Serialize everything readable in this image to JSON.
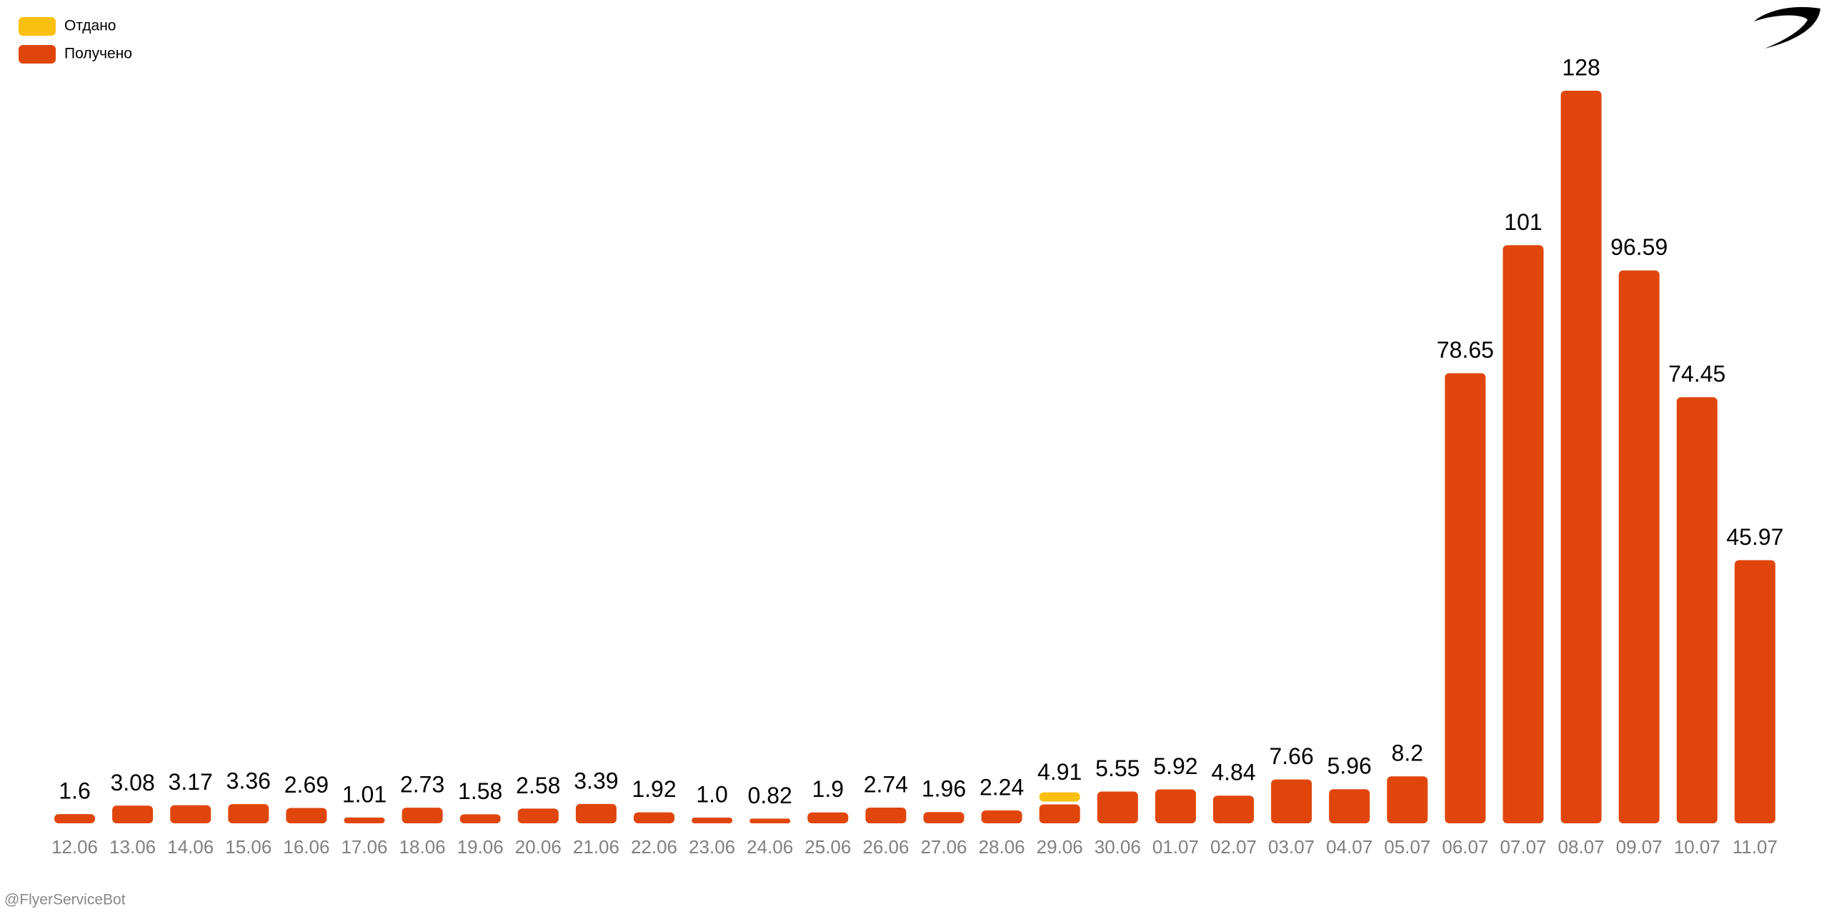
{
  "chart_data": {
    "type": "stacked_bar",
    "categories": [
      "12.06",
      "13.06",
      "14.06",
      "15.06",
      "16.06",
      "17.06",
      "18.06",
      "19.06",
      "20.06",
      "21.06",
      "22.06",
      "23.06",
      "24.06",
      "25.06",
      "26.06",
      "27.06",
      "28.06",
      "29.06",
      "30.06",
      "01.07",
      "02.07",
      "03.07",
      "04.07",
      "05.07",
      "06.07",
      "07.07",
      "08.07",
      "09.07",
      "10.07",
      "11.07"
    ],
    "series": [
      {
        "name": "Получено",
        "color": "#e0460c",
        "values": [
          1.6,
          3.08,
          3.17,
          3.36,
          2.69,
          1.01,
          2.73,
          1.58,
          2.58,
          3.39,
          1.92,
          1.0,
          0.82,
          1.9,
          2.74,
          1.96,
          2.24,
          3.31,
          5.55,
          5.92,
          4.84,
          7.66,
          5.96,
          8.2,
          78.65,
          101,
          128,
          96.59,
          74.45,
          45.97
        ]
      },
      {
        "name": "Отдано",
        "color": "#fbbf0f",
        "values": [
          null,
          null,
          null,
          null,
          null,
          null,
          null,
          null,
          null,
          null,
          null,
          null,
          null,
          null,
          null,
          null,
          null,
          1.6,
          null,
          null,
          null,
          null,
          null,
          null,
          null,
          null,
          null,
          null,
          null,
          null
        ]
      }
    ],
    "totals": [
      1.6,
      3.08,
      3.17,
      3.36,
      2.69,
      1.01,
      2.73,
      1.58,
      2.58,
      3.39,
      1.92,
      1.0,
      0.82,
      1.9,
      2.74,
      1.96,
      2.24,
      4.91,
      5.55,
      5.92,
      4.84,
      7.66,
      5.96,
      8.2,
      78.65,
      101,
      128,
      96.59,
      74.45,
      45.97
    ],
    "total_labels": [
      "1.6",
      "3.08",
      "3.17",
      "3.36",
      "2.69",
      "1.01",
      "2.73",
      "1.58",
      "2.58",
      "3.39",
      "1.92",
      "1.0",
      "0.82",
      "1.9",
      "2.74",
      "1.96",
      "2.24",
      "4.91",
      "5.55",
      "5.92",
      "4.84",
      "7.66",
      "5.96",
      "8.2",
      "78.65",
      "101",
      "128",
      "96.59",
      "74.45",
      "45.97"
    ],
    "legend_order": [
      1,
      0
    ],
    "footer": "@FlyerServiceBot"
  }
}
